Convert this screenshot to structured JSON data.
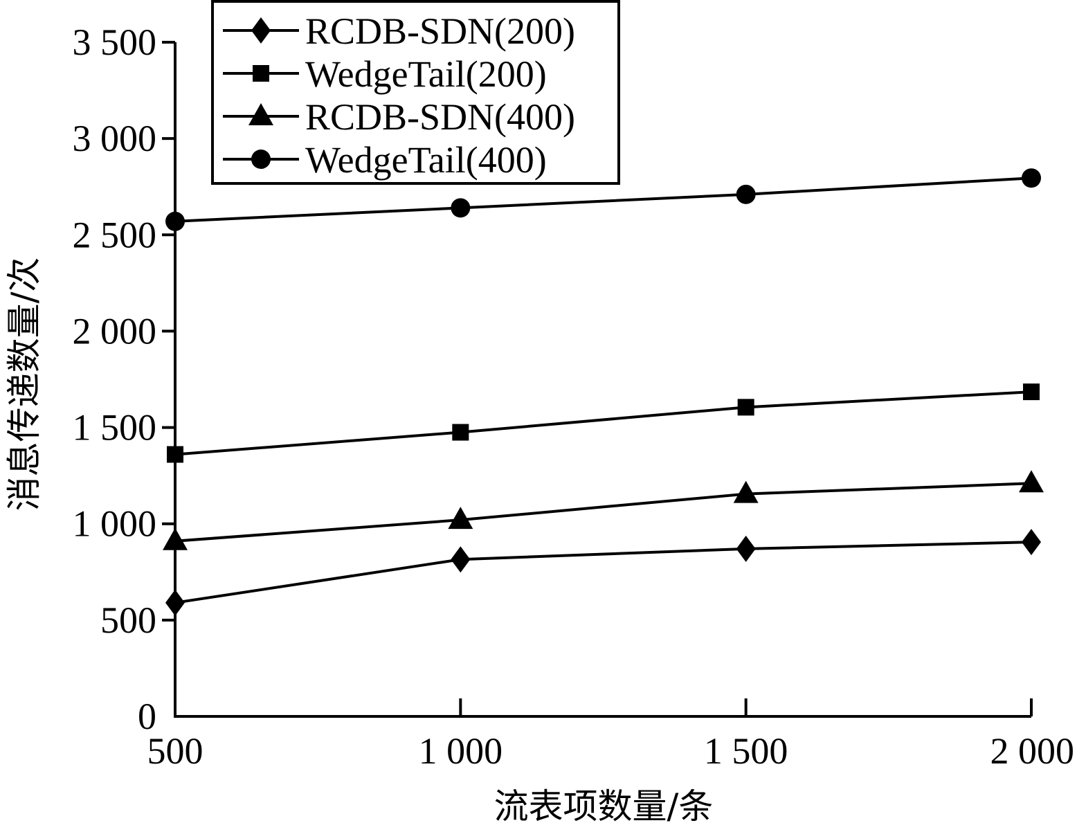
{
  "chart_data": {
    "type": "line",
    "xlabel": "流表项数量/条",
    "ylabel": "消息传递数量/次",
    "x": [
      500,
      1000,
      1500,
      2000
    ],
    "x_tick_labels": [
      "500",
      "1 000",
      "1 500",
      "2 000"
    ],
    "xlim": [
      500,
      2000
    ],
    "ylim": [
      0,
      3500
    ],
    "y_ticks": [
      0,
      500,
      1000,
      1500,
      2000,
      2500,
      3000,
      3500
    ],
    "y_tick_labels": [
      "0",
      "500",
      "1 000",
      "1 500",
      "2 000",
      "2 500",
      "3 000",
      "3 500"
    ],
    "grid": false,
    "legend_position": "top-left",
    "series": [
      {
        "name": "RCDB-SDN(200)",
        "marker": "diamond",
        "values": [
          590,
          815,
          870,
          905
        ]
      },
      {
        "name": "WedgeTail(200)",
        "marker": "square",
        "values": [
          1360,
          1475,
          1605,
          1685
        ]
      },
      {
        "name": "RCDB-SDN(400)",
        "marker": "triangle",
        "values": [
          910,
          1020,
          1155,
          1210
        ]
      },
      {
        "name": "WedgeTail(400)",
        "marker": "circle",
        "values": [
          2570,
          2640,
          2710,
          2795
        ]
      }
    ],
    "colors": {
      "line": "#000000",
      "background": "#ffffff"
    }
  }
}
